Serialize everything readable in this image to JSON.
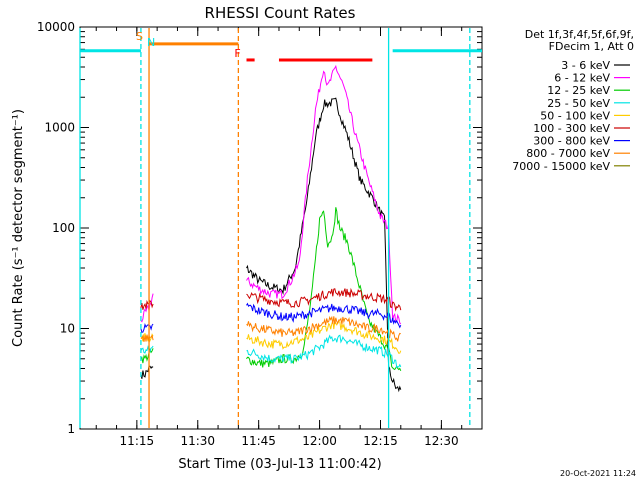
{
  "chart_data": {
    "type": "line",
    "title": "RHESSI Count Rates",
    "xlabel": "Start Time (03-Jul-13 11:00:42)",
    "ylabel": "Count Rate (s⁻¹ detector segment⁻¹)",
    "x_unit": "time (hh:mm)",
    "xlim": [
      "11:01",
      "12:40"
    ],
    "ylim": [
      1,
      10000
    ],
    "yscale": "log",
    "x_ticks": [
      "11:15",
      "11:30",
      "11:45",
      "12:00",
      "12:15",
      "12:30"
    ],
    "y_ticks": [
      "1",
      "10",
      "100",
      "1000",
      "10000"
    ],
    "grid": false,
    "legend_position": "right",
    "legend_header": [
      "Det 1f,3f,4f,5f,6f,9f,",
      "FDecim 1, Att 0"
    ],
    "footer_date": "20-Oct-2021 11:24",
    "data_gaps": [
      [
        "11:19",
        "11:41"
      ],
      [
        "12:20",
        "12:40"
      ]
    ],
    "series": [
      {
        "name": "3 - 6 keV",
        "color": "#000000",
        "x": [
          "11:16",
          "11:17",
          "11:18",
          "11:19",
          "11:42",
          "11:45",
          "11:48",
          "11:51",
          "11:54",
          "11:57",
          "11:59",
          "12:01",
          "12:04",
          "12:07",
          "12:10",
          "12:13",
          "12:16",
          "12:17",
          "12:18",
          "12:19",
          "12:20"
        ],
        "y": [
          3.5,
          3.5,
          4,
          4,
          40,
          30,
          26,
          24,
          40,
          200,
          800,
          1700,
          1800,
          800,
          300,
          200,
          120,
          4,
          3,
          2.5,
          2.5
        ]
      },
      {
        "name": "6 - 12 keV",
        "color": "#ff00ff",
        "x": [
          "11:16",
          "11:17",
          "11:18",
          "11:19",
          "11:42",
          "11:45",
          "11:48",
          "11:51",
          "11:53",
          "11:55",
          "11:57",
          "11:59",
          "12:01",
          "12:02",
          "12:04",
          "12:06",
          "12:09",
          "12:12",
          "12:15",
          "12:17",
          "12:18",
          "12:20"
        ],
        "y": [
          12,
          14,
          16,
          22,
          30,
          25,
          22,
          22,
          30,
          45,
          300,
          1500,
          4000,
          2500,
          4000,
          2500,
          800,
          300,
          130,
          100,
          13,
          12
        ]
      },
      {
        "name": "12 - 25 keV",
        "color": "#00cc00",
        "x": [
          "11:16",
          "11:17",
          "11:18",
          "11:19",
          "11:42",
          "11:45",
          "11:48",
          "11:51",
          "11:54",
          "11:56",
          "11:58",
          "12:00",
          "12:01",
          "12:02",
          "12:03",
          "12:04",
          "12:05",
          "12:07",
          "12:09",
          "12:12",
          "12:15",
          "12:17",
          "12:18",
          "12:20"
        ],
        "y": [
          5,
          5,
          5.5,
          6,
          5,
          4.5,
          4.5,
          5,
          5,
          6,
          20,
          120,
          150,
          70,
          80,
          150,
          100,
          70,
          35,
          12,
          8,
          6,
          4,
          4
        ]
      },
      {
        "name": "25 - 50 keV",
        "color": "#00e5e5",
        "x": [
          "11:16",
          "11:17",
          "11:18",
          "11:19",
          "11:42",
          "11:45",
          "11:48",
          "11:51",
          "11:54",
          "11:57",
          "12:00",
          "12:03",
          "12:06",
          "12:09",
          "12:12",
          "12:15",
          "12:17",
          "12:18",
          "12:20"
        ],
        "y": [
          6,
          6,
          6,
          6.5,
          6,
          5.5,
          5,
          5,
          5,
          5.5,
          6.5,
          8,
          8,
          7,
          6.5,
          6,
          5.5,
          5,
          4
        ]
      },
      {
        "name": "50 - 100 keV",
        "color": "#ffcc00",
        "x": [
          "11:16",
          "11:17",
          "11:18",
          "11:19",
          "11:42",
          "11:45",
          "11:48",
          "11:51",
          "11:54",
          "11:57",
          "12:00",
          "12:03",
          "12:06",
          "12:09",
          "12:12",
          "12:15",
          "12:17",
          "12:18",
          "12:20"
        ],
        "y": [
          8,
          8,
          8,
          8.5,
          8,
          7.5,
          7,
          7,
          7.5,
          8,
          9.5,
          11,
          10.5,
          9.5,
          8.5,
          8,
          7.5,
          7,
          6
        ]
      },
      {
        "name": "100 - 300 keV",
        "color": "#cc0000",
        "x": [
          "11:16",
          "11:17",
          "11:18",
          "11:19",
          "11:42",
          "11:45",
          "11:48",
          "11:51",
          "11:54",
          "11:57",
          "12:00",
          "12:03",
          "12:06",
          "12:09",
          "12:12",
          "12:15",
          "12:17",
          "12:18",
          "12:20"
        ],
        "y": [
          16,
          17,
          17,
          18,
          22,
          20,
          19,
          18,
          18,
          19,
          21,
          23,
          23,
          22,
          21,
          20,
          19,
          17,
          16
        ]
      },
      {
        "name": "300 - 800 keV",
        "color": "#0000ff",
        "x": [
          "11:16",
          "11:17",
          "11:18",
          "11:19",
          "11:42",
          "11:45",
          "11:48",
          "11:51",
          "11:54",
          "11:57",
          "12:00",
          "12:03",
          "12:06",
          "12:09",
          "12:12",
          "12:15",
          "12:17",
          "12:18",
          "12:20"
        ],
        "y": [
          10,
          10,
          10,
          10.5,
          17,
          15,
          14,
          13,
          13,
          14,
          15,
          16,
          16,
          15,
          14,
          14,
          13,
          12,
          11
        ]
      },
      {
        "name": "800 - 7000 keV",
        "color": "#ff8000",
        "x": [
          "11:16",
          "11:17",
          "11:18",
          "11:19",
          "11:42",
          "11:45",
          "11:48",
          "11:51",
          "11:54",
          "11:57",
          "12:00",
          "12:03",
          "12:06",
          "12:09",
          "12:12",
          "12:15",
          "12:17",
          "12:18",
          "12:20"
        ],
        "y": [
          8,
          8,
          8,
          8.5,
          11,
          10,
          9.5,
          9,
          9,
          10,
          11,
          12,
          12,
          11,
          10,
          10,
          9,
          8.5,
          8
        ]
      },
      {
        "name": "7000 - 15000 keV",
        "color": "#808000",
        "x": [],
        "y": []
      }
    ],
    "markers": [
      {
        "label": "S",
        "color": "#ff8000",
        "x": "11:17"
      },
      {
        "label": "N",
        "color": "#00e5e5",
        "x": "11:17"
      },
      {
        "label": "F",
        "color": "#ff0000",
        "x": "11:41"
      }
    ],
    "state_bars": [
      {
        "color": "#00e5e5",
        "x_start": "11:01",
        "x_end": "11:16",
        "y": 5800
      },
      {
        "color": "#ff8000",
        "x_start": "11:18",
        "x_end": "11:40",
        "y": 6800
      },
      {
        "color": "#ff0000",
        "x_start": "11:42",
        "x_end": "11:44",
        "y": 4700
      },
      {
        "color": "#ff0000",
        "x_start": "11:50",
        "x_end": "12:13",
        "y": 4700
      },
      {
        "color": "#00e5e5",
        "x_start": "12:18",
        "x_end": "12:40",
        "y": 5800
      }
    ],
    "vlines": [
      {
        "color": "#00e5e5",
        "style": "solid",
        "x": "11:01"
      },
      {
        "color": "#00e5e5",
        "style": "dashed",
        "x": "11:16"
      },
      {
        "color": "#ff8000",
        "style": "solid",
        "x": "11:18"
      },
      {
        "color": "#ff8000",
        "style": "dashed",
        "x": "11:40"
      },
      {
        "color": "#00e5e5",
        "style": "solid",
        "x": "12:17"
      },
      {
        "color": "#00e5e5",
        "style": "dashed",
        "x": "12:37"
      }
    ]
  }
}
